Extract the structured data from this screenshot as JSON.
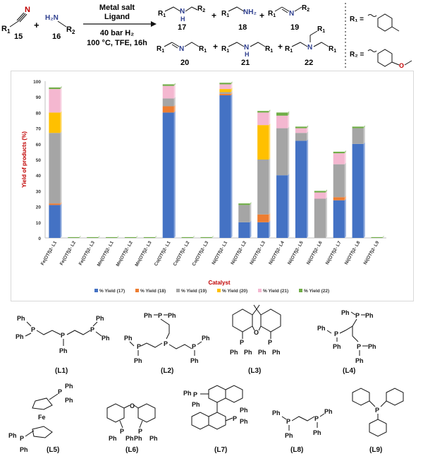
{
  "scheme": {
    "reactant1_label": "R",
    "reactant1_sub": "1",
    "reactant1_atom": "N",
    "reactant1_number": "15",
    "plus": "+",
    "reactant2_atoms": "H₂N",
    "reactant2_r": "R",
    "reactant2_sub": "2",
    "reactant2_number": "16",
    "arrow_top1": "Metal salt",
    "arrow_top2": "Ligand",
    "arrow_bottom1": "40 bar H₂",
    "arrow_bottom2": "100 °C, TFE, 16h",
    "products": [
      {
        "number": "17",
        "text": "R₁⌒NH⌒R₂"
      },
      {
        "number": "18",
        "text": "R₁⌒NH₂"
      },
      {
        "number": "19",
        "text": "R₁⌒=N⌒R₂"
      },
      {
        "number": "20",
        "text": "R₁=N⌒R₁"
      },
      {
        "number": "21",
        "text": "R₁⌒NH⌒R₁"
      },
      {
        "number": "22",
        "text": "(R₁⌒)₃N"
      }
    ],
    "r1_def": "R₁ =",
    "r2_def": "R₂ =",
    "nh_label": "H",
    "n_label": "N",
    "nh2_label": "NH₂",
    "methoxy": "O"
  },
  "chart_data": {
    "type": "bar",
    "stacked": true,
    "xlabel": "Catalyst",
    "ylabel": "Yield of products (%)",
    "ylim": [
      0,
      100
    ],
    "yticks": [
      0,
      10,
      20,
      30,
      40,
      50,
      60,
      70,
      80,
      90,
      100
    ],
    "grid": false,
    "legend_position": "bottom",
    "categories": [
      "Fe(OTf)2- L1",
      "Fe(OTf)2- L2",
      "Fe(OTf)2- L3",
      "Mn(OTf)2- L1",
      "Mn(OTf)2- L2",
      "Mn(OTf)2- L3",
      "Co(OTf)2- L1",
      "Co(OTf)2- L2",
      "Co(OTf)2- L3",
      "Ni(OTf)2- L1",
      "Ni(OTf)2- L2",
      "Ni(OTf)2- L3",
      "Ni(OTf)2- L4",
      "Ni(OTf)2- L5",
      "Ni(OTf)2- L6",
      "Ni(OTf)2- L7",
      "Ni(OTf)2- L8",
      "Ni(OTf)2- L9"
    ],
    "series": [
      {
        "name": "% Yield (17)",
        "color": "#4472c4",
        "values": [
          21,
          0,
          0,
          0,
          0,
          0,
          80,
          0,
          0,
          91,
          10,
          10,
          40,
          62,
          0,
          24,
          60,
          0
        ]
      },
      {
        "name": "% Yield (18)",
        "color": "#ed7d31",
        "values": [
          1,
          0,
          0,
          0,
          0,
          0,
          4,
          0,
          0,
          1,
          0,
          5,
          0,
          0,
          0,
          2,
          0,
          0
        ]
      },
      {
        "name": "% Yield (19)",
        "color": "#a5a5a5",
        "values": [
          45,
          0,
          0,
          0,
          0,
          0,
          5,
          0,
          0,
          1,
          11,
          35,
          30,
          5,
          25,
          21,
          10,
          0
        ]
      },
      {
        "name": "% Yield (20)",
        "color": "#ffc000",
        "values": [
          13,
          0,
          0,
          0,
          0,
          0,
          0,
          0,
          0,
          2,
          0,
          22,
          0,
          0,
          0,
          0,
          0,
          0
        ]
      },
      {
        "name": "% Yield (21)",
        "color": "#f4b7d0",
        "values": [
          15,
          0,
          0,
          0,
          0,
          0,
          8,
          0,
          0,
          3,
          0,
          8,
          8,
          3,
          4,
          7,
          0,
          0
        ]
      },
      {
        "name": "% Yield (22)",
        "color": "#70ad47",
        "values": [
          1,
          0.5,
          0.5,
          0.5,
          0.5,
          0.5,
          1,
          0.5,
          0.5,
          1,
          1,
          1,
          2,
          1,
          1,
          1,
          1,
          0.5
        ]
      }
    ]
  },
  "ligands": [
    {
      "label": "(L1)"
    },
    {
      "label": "(L2)"
    },
    {
      "label": "(L3)"
    },
    {
      "label": "(L4)"
    },
    {
      "label": "(L5)"
    },
    {
      "label": "(L6)"
    },
    {
      "label": "(L7)"
    },
    {
      "label": "(L8)"
    },
    {
      "label": "(L9)"
    }
  ],
  "atoms": {
    "ph": "Ph",
    "p": "P",
    "fe": "Fe",
    "o": "O"
  }
}
